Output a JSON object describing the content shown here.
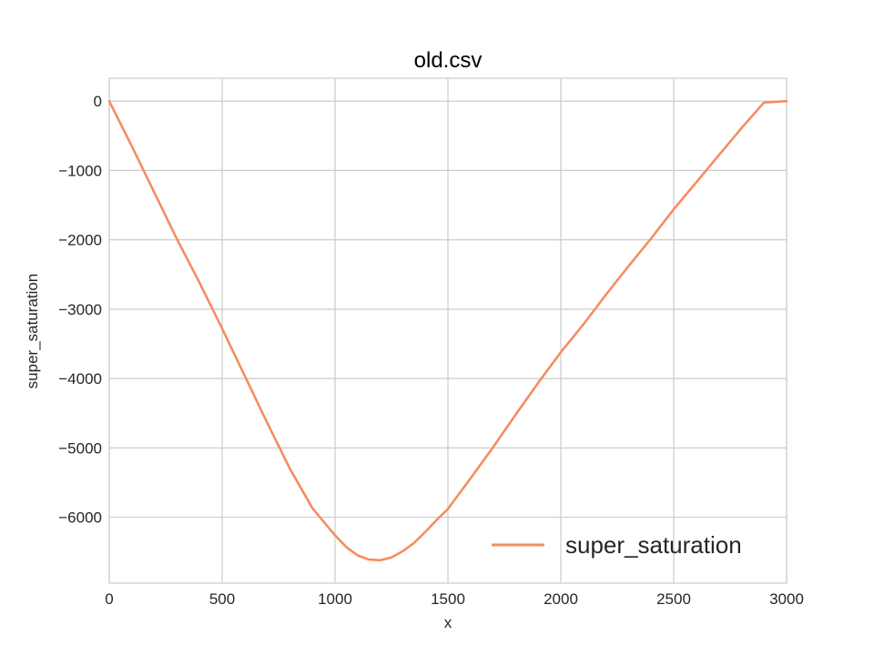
{
  "chart_data": {
    "type": "line",
    "title": "old.csv",
    "xlabel": "x",
    "ylabel": "super_saturation",
    "xlim": [
      0,
      3000
    ],
    "ylim": [
      -6950,
      330
    ],
    "xticks": [
      0,
      500,
      1000,
      1500,
      2000,
      2500,
      3000
    ],
    "xtick_labels": [
      "0",
      "500",
      "1000",
      "1500",
      "2000",
      "2500",
      "3000"
    ],
    "yticks": [
      0,
      -1000,
      -2000,
      -3000,
      -4000,
      -5000,
      -6000
    ],
    "ytick_labels": [
      "0",
      "−1000",
      "−2000",
      "−3000",
      "−4000",
      "−5000",
      "−6000"
    ],
    "grid": true,
    "legend_position": "lower-right",
    "series": [
      {
        "name": "super_saturation",
        "color": "#f58d60",
        "x": [
          0,
          100,
          200,
          300,
          400,
          500,
          600,
          700,
          800,
          900,
          1000,
          1050,
          1100,
          1150,
          1200,
          1250,
          1300,
          1350,
          1400,
          1450,
          1500,
          1600,
          1700,
          1800,
          1900,
          2000,
          2100,
          2200,
          2300,
          2400,
          2500,
          2600,
          2700,
          2800,
          2900,
          3000
        ],
        "y": [
          0,
          -650,
          -1320,
          -1990,
          -2620,
          -3280,
          -3960,
          -4640,
          -5300,
          -5870,
          -6260,
          -6430,
          -6550,
          -6610,
          -6620,
          -6580,
          -6490,
          -6370,
          -6210,
          -6040,
          -5880,
          -5440,
          -4990,
          -4520,
          -4060,
          -3620,
          -3220,
          -2790,
          -2380,
          -1980,
          -1560,
          -1170,
          -780,
          -390,
          -20,
          0
        ]
      }
    ]
  }
}
